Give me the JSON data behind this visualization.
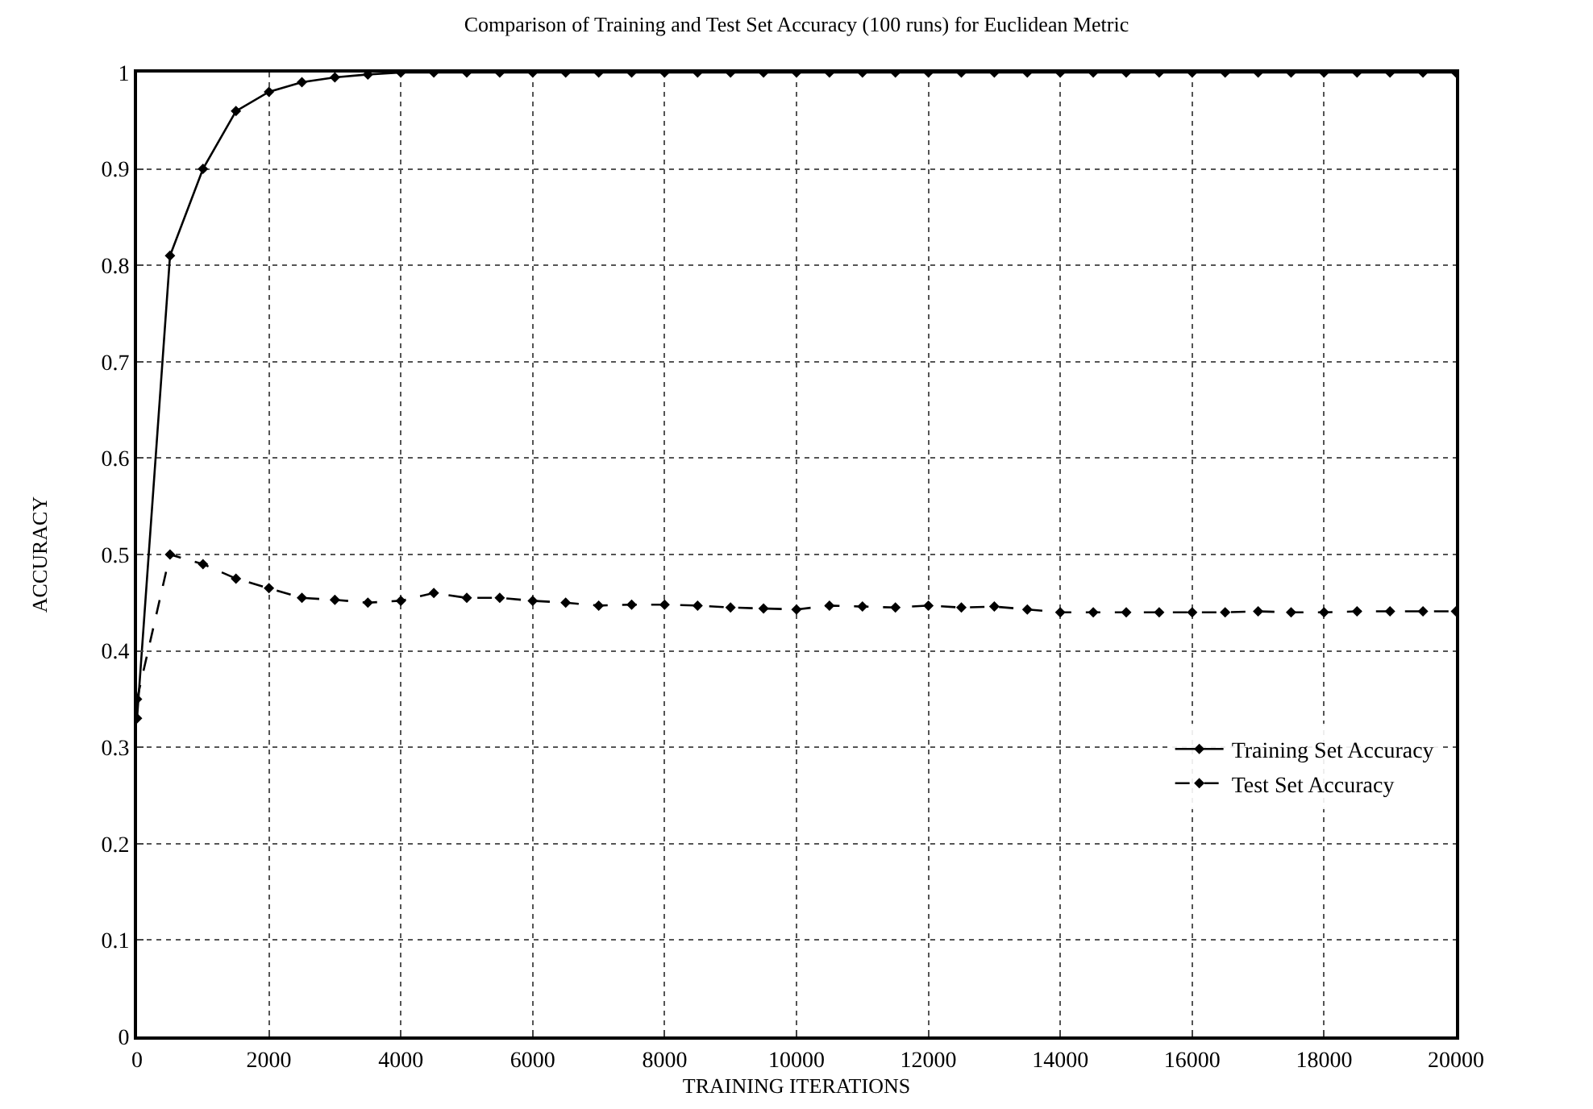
{
  "chart_data": {
    "type": "line",
    "title": "Comparison of Training and Test Set Accuracy (100 runs) for Euclidean Metric",
    "xlabel": "TRAINING ITERATIONS",
    "ylabel": "ACCURACY",
    "x": [
      0,
      500,
      1000,
      1500,
      2000,
      2500,
      3000,
      3500,
      4000,
      4500,
      5000,
      5500,
      6000,
      6500,
      7000,
      7500,
      8000,
      8500,
      9000,
      9500,
      10000,
      10500,
      11000,
      11500,
      12000,
      12500,
      13000,
      13500,
      14000,
      14500,
      15000,
      15500,
      16000,
      16500,
      17000,
      17500,
      18000,
      18500,
      19000,
      19500,
      20000
    ],
    "series": [
      {
        "name": "Training Set Accuracy",
        "color": "#000000",
        "line_style": "solid",
        "values": [
          0.33,
          0.81,
          0.9,
          0.96,
          0.98,
          0.99,
          0.995,
          0.998,
          1,
          1,
          1,
          1,
          1,
          1,
          1,
          1,
          1,
          1,
          1,
          1,
          1,
          1,
          1,
          1,
          1,
          1,
          1,
          1,
          1,
          1,
          1,
          1,
          1,
          1,
          1,
          1,
          1,
          1,
          1,
          1,
          1
        ]
      },
      {
        "name": "Test Set Accuracy",
        "color": "#000000",
        "line_style": "dashed",
        "values": [
          0.35,
          0.5,
          0.49,
          0.475,
          0.465,
          0.455,
          0.453,
          0.45,
          0.452,
          0.46,
          0.455,
          0.455,
          0.452,
          0.45,
          0.447,
          0.448,
          0.448,
          0.447,
          0.445,
          0.444,
          0.443,
          0.447,
          0.446,
          0.445,
          0.447,
          0.445,
          0.446,
          0.443,
          0.44,
          0.44,
          0.44,
          0.44,
          0.44,
          0.44,
          0.441,
          0.44,
          0.44,
          0.441,
          0.441,
          0.441,
          0.441
        ]
      }
    ],
    "xlim": [
      0,
      20000
    ],
    "xticks": [
      0,
      2000,
      4000,
      6000,
      8000,
      10000,
      12000,
      14000,
      16000,
      18000,
      20000
    ],
    "ylim": [
      0,
      1
    ],
    "yticks": [
      0,
      0.1,
      0.2,
      0.3,
      0.4,
      0.5,
      0.6,
      0.7,
      0.8,
      0.9,
      1
    ],
    "grid": true,
    "legend": "right",
    "marker": "diamond"
  }
}
